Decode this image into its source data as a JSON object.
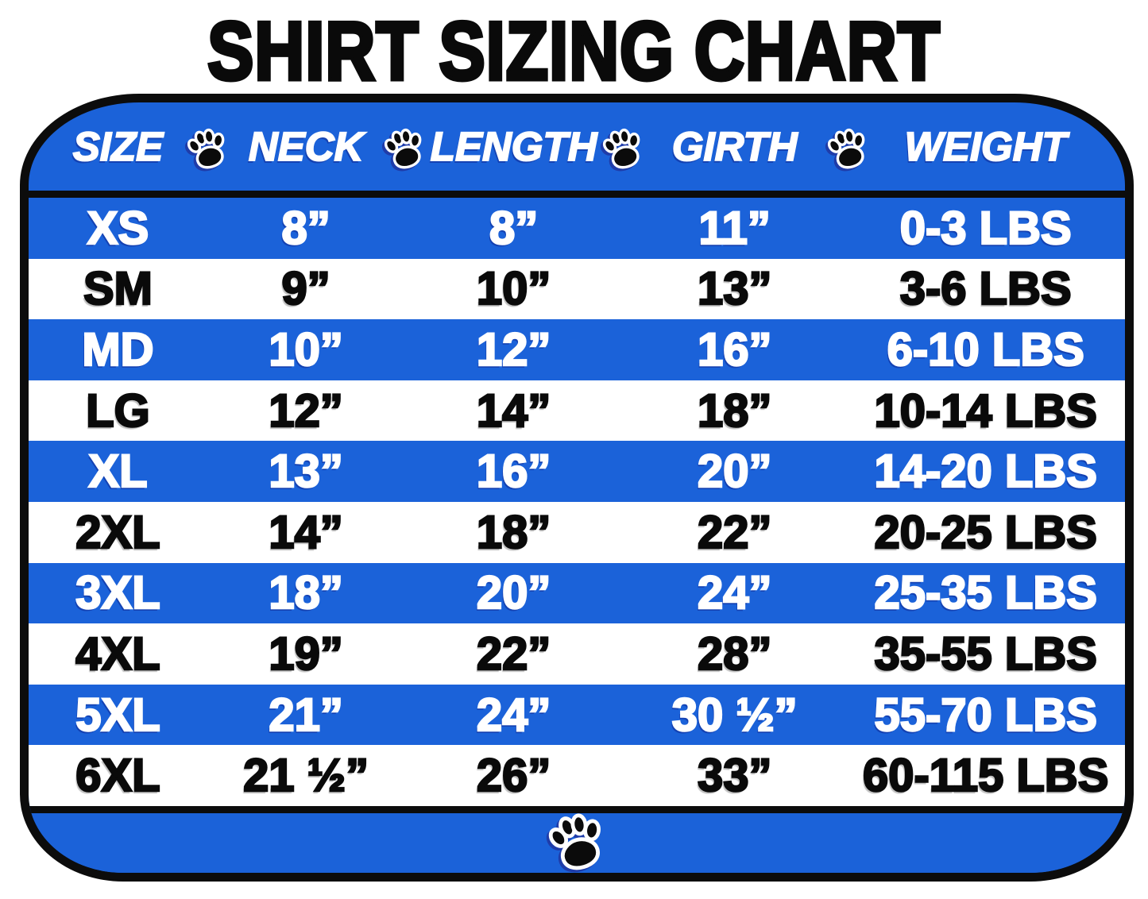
{
  "title": "SHIRT SIZING CHART",
  "table": {
    "headers": [
      "SIZE",
      "NECK",
      "LENGTH",
      "GIRTH",
      "WEIGHT"
    ],
    "columns_keys": [
      "size",
      "neck",
      "length",
      "girth",
      "weight"
    ],
    "rows": [
      {
        "size": "XS",
        "neck": "8”",
        "length": "8”",
        "girth": "11”",
        "weight": "0-3 LBS"
      },
      {
        "size": "SM",
        "neck": "9”",
        "length": "10”",
        "girth": "13”",
        "weight": "3-6 LBS"
      },
      {
        "size": "MD",
        "neck": "10”",
        "length": "12”",
        "girth": "16”",
        "weight": "6-10 LBS"
      },
      {
        "size": "LG",
        "neck": "12”",
        "length": "14”",
        "girth": "18”",
        "weight": "10-14 LBS"
      },
      {
        "size": "XL",
        "neck": "13”",
        "length": "16”",
        "girth": "20”",
        "weight": "14-20 LBS"
      },
      {
        "size": "2XL",
        "neck": "14”",
        "length": "18”",
        "girth": "22”",
        "weight": "20-25 LBS"
      },
      {
        "size": "3XL",
        "neck": "18”",
        "length": "20”",
        "girth": "24”",
        "weight": "25-35 LBS"
      },
      {
        "size": "4XL",
        "neck": "19”",
        "length": "22”",
        "girth": "28”",
        "weight": "35-55 LBS"
      },
      {
        "size": "5XL",
        "neck": "21”",
        "length": "24”",
        "girth": "30 ½”",
        "weight": "55-70 LBS"
      },
      {
        "size": "6XL",
        "neck": "21 ½”",
        "length": "26”",
        "girth": "33”",
        "weight": "60-115 LBS"
      }
    ],
    "row_stripe_colors": [
      "blue",
      "white"
    ]
  },
  "icons": {
    "separator": "paw-icon",
    "footer": "paw-icon"
  },
  "colors": {
    "blue": "#1b62d9",
    "black": "#0c0c0c",
    "white": "#ffffff"
  },
  "chart_data": {
    "type": "table",
    "title": "SHIRT SIZING CHART",
    "columns": [
      "SIZE",
      "NECK",
      "LENGTH",
      "GIRTH",
      "WEIGHT"
    ],
    "rows": [
      [
        "XS",
        "8”",
        "8”",
        "11”",
        "0-3 LBS"
      ],
      [
        "SM",
        "9”",
        "10”",
        "13”",
        "3-6 LBS"
      ],
      [
        "MD",
        "10”",
        "12”",
        "16”",
        "6-10 LBS"
      ],
      [
        "LG",
        "12”",
        "14”",
        "18”",
        "10-14 LBS"
      ],
      [
        "XL",
        "13”",
        "16”",
        "20”",
        "14-20 LBS"
      ],
      [
        "2XL",
        "14”",
        "18”",
        "22”",
        "20-25 LBS"
      ],
      [
        "3XL",
        "18”",
        "20”",
        "24”",
        "25-35 LBS"
      ],
      [
        "4XL",
        "19”",
        "22”",
        "28”",
        "35-55 LBS"
      ],
      [
        "5XL",
        "21”",
        "24”",
        "30 ½”",
        "55-70 LBS"
      ],
      [
        "6XL",
        "21 ½”",
        "26”",
        "33”",
        "60-115 LBS"
      ]
    ]
  }
}
